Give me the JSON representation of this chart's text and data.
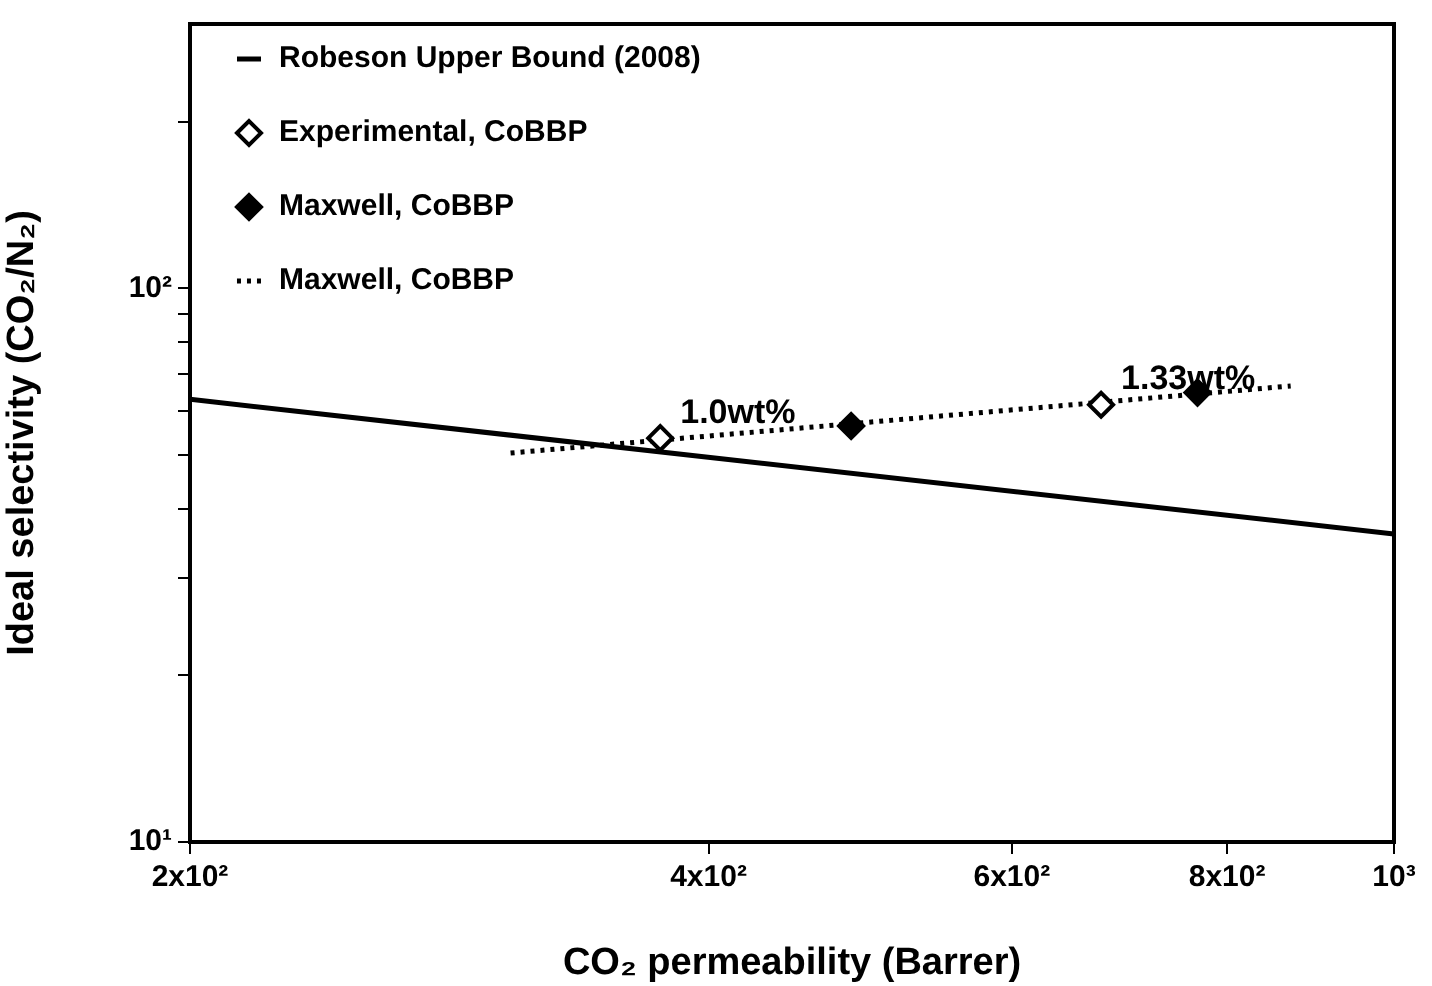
{
  "chart_data": {
    "type": "scatter",
    "xlabel": "CO₂ permeability (Barrer)",
    "ylabel": "Ideal selectivity (CO₂/N₂)",
    "log": "xy",
    "xlim": [
      200,
      1000
    ],
    "xticks": [
      {
        "value": 200,
        "label": "2x10²"
      },
      {
        "value": 400,
        "label": "4x10²"
      },
      {
        "value": 600,
        "label": "6x10²"
      },
      {
        "value": 800,
        "label": "8x10²"
      },
      {
        "value": 1000,
        "label": "10³"
      }
    ],
    "ylim": [
      10,
      300
    ],
    "yticks": [
      {
        "value": 10,
        "label": "10¹"
      },
      {
        "value": 20,
        "label": null
      },
      {
        "value": 30,
        "label": null
      },
      {
        "value": 40,
        "label": null
      },
      {
        "value": 50,
        "label": null
      },
      {
        "value": 60,
        "label": null
      },
      {
        "value": 70,
        "label": null
      },
      {
        "value": 80,
        "label": null
      },
      {
        "value": 90,
        "label": null
      },
      {
        "value": 100,
        "label": "10²"
      },
      {
        "value": 200,
        "label": null
      }
    ],
    "grid": false,
    "legend": "top left",
    "series": [
      {
        "name": "Robeson Upper Bound (2008)",
        "type": "line",
        "color": "#000000",
        "x": [
          200,
          1000
        ],
        "values": [
          63,
          36
        ],
        "marker": "none",
        "line_style": "solid"
      },
      {
        "name": "Experimental, CoBBP",
        "type": "scatter",
        "color": "#ffffff",
        "x": [
          375,
          676
        ],
        "values": [
          53.6,
          61.6
        ],
        "marker": "diamond"
      },
      {
        "name": "Maxwell, CoBBP",
        "type": "scatter",
        "color": "#000000",
        "x": [
          484,
          769
        ],
        "values": [
          56.4,
          64.8
        ],
        "marker": "diamond"
      },
      {
        "name": "Maxwell, CoBBP",
        "type": "line",
        "color": "#000000",
        "x": [
          307,
          871
        ],
        "values": [
          50.4,
          66.6
        ],
        "marker": "none",
        "line_style": "dotted"
      }
    ],
    "annotations": [
      {
        "text": "1.0wt%",
        "x": 375,
        "y": 53.6
      },
      {
        "text": "1.33wt%",
        "x": 676,
        "y": 61.6
      }
    ]
  }
}
